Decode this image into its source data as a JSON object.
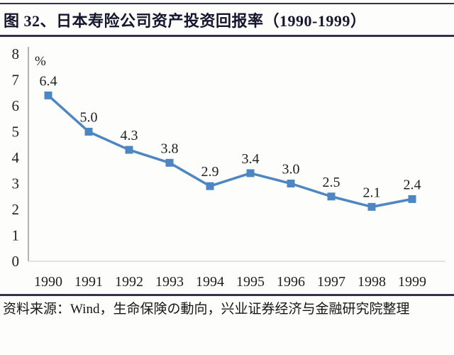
{
  "title": "图 32、日本寿险公司资产投资回报率（1990-1999）",
  "source_note": "资料来源：Wind，生命保険の動向，兴业证券经济与金融研究院整理",
  "colors": {
    "accent_line": "#4e86c2",
    "rule": "#32324d",
    "y_axis": "#a0a0a0",
    "x_axis": "#d9d9d9",
    "text": "#1f1f1f"
  },
  "chart_data": {
    "type": "line",
    "title": "日本寿险公司资产投资回报率（1990-1999）",
    "categories": [
      "1990",
      "1991",
      "1992",
      "1993",
      "1994",
      "1995",
      "1996",
      "1997",
      "1998",
      "1999"
    ],
    "values": [
      6.4,
      5.0,
      4.3,
      3.8,
      2.9,
      3.4,
      3.0,
      2.5,
      2.1,
      2.4
    ],
    "data_labels": [
      "6.4",
      "5.0",
      "4.3",
      "3.8",
      "2.9",
      "3.4",
      "3.0",
      "2.5",
      "2.1",
      "2.4"
    ],
    "unit_label": "%",
    "xlabel": "",
    "ylabel": "",
    "ylim": [
      0,
      8
    ],
    "ytick_step": 1,
    "grid": false,
    "legend": "none",
    "marker": "square"
  }
}
